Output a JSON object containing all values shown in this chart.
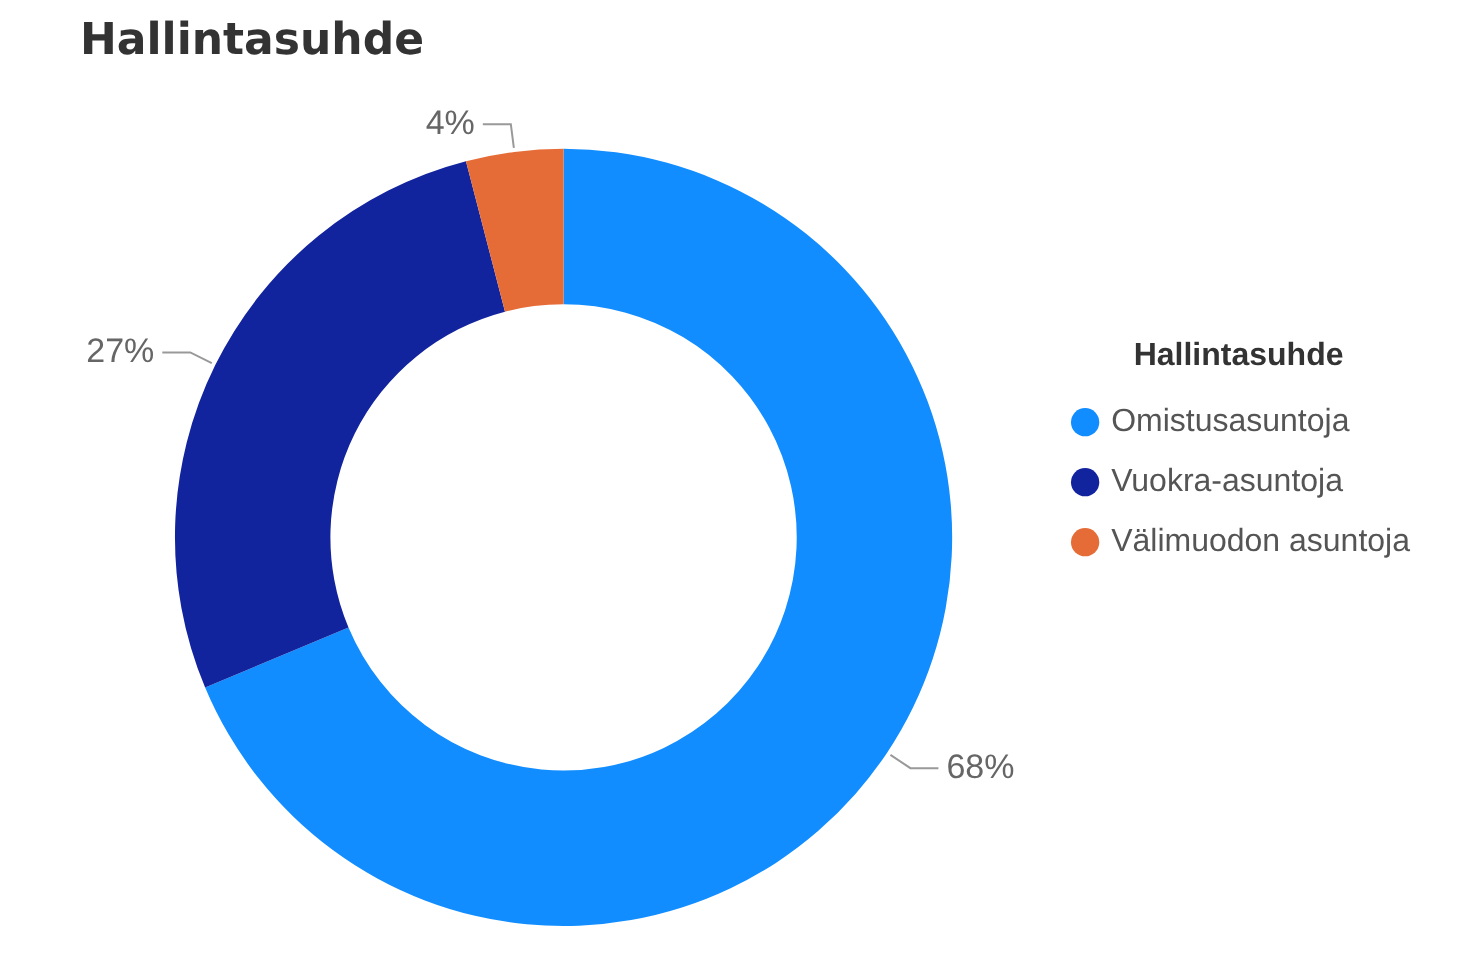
{
  "chart_data": {
    "type": "donut",
    "title": "Hallintasuhde",
    "legend_title": "Hallintasuhde",
    "legend": "right",
    "categories": [
      "Omistusasuntoja",
      "Vuokra-asuntoja",
      "Välimuodon asuntoja"
    ],
    "values": [
      68,
      27,
      4
    ],
    "colors": [
      "#118dff",
      "#12239e",
      "#e66c37"
    ],
    "value_labels": [
      "68%",
      "27%",
      "4%"
    ]
  }
}
